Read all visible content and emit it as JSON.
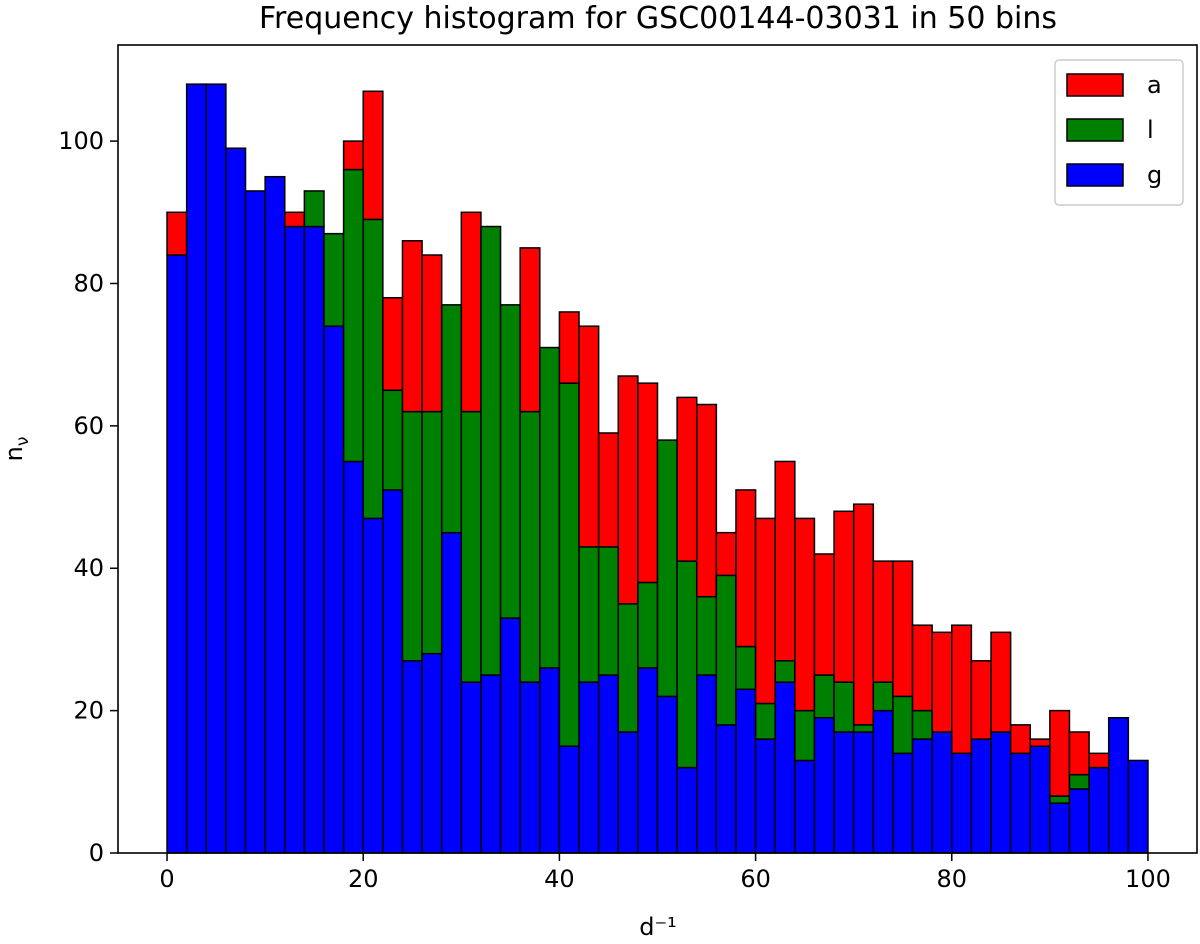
{
  "chart_data": {
    "type": "histogram",
    "stacked": true,
    "title": "Frequency histogram for GSC00144-03031 in 50 bins",
    "xlabel": "d⁻¹",
    "ylabel": {
      "text": "n",
      "subscript": "ν"
    },
    "bins": [
      0,
      2,
      4,
      6,
      8,
      10,
      12,
      14,
      16,
      18,
      20,
      22,
      24,
      26,
      28,
      30,
      32,
      34,
      36,
      38,
      40,
      42,
      44,
      46,
      48,
      50,
      52,
      54,
      56,
      58,
      60,
      62,
      64,
      66,
      68,
      70,
      72,
      74,
      76,
      78,
      80,
      82,
      84,
      86,
      88,
      90,
      92,
      94,
      96,
      98,
      100
    ],
    "series": [
      {
        "name": "a",
        "color": "#ff0000",
        "values": [
          6,
          0,
          0,
          0,
          0,
          0,
          2,
          0,
          0,
          4,
          18,
          13,
          24,
          22,
          0,
          28,
          0,
          0,
          23,
          0,
          10,
          31,
          16,
          32,
          28,
          0,
          23,
          27,
          6,
          22,
          26,
          28,
          27,
          17,
          24,
          31,
          17,
          19,
          12,
          14,
          18,
          11,
          14,
          4,
          1,
          12,
          6,
          2,
          0,
          0
        ]
      },
      {
        "name": "l",
        "color": "#008000",
        "values": [
          0,
          0,
          0,
          0,
          0,
          0,
          0,
          5,
          13,
          41,
          42,
          14,
          35,
          34,
          32,
          38,
          63,
          44,
          38,
          45,
          51,
          19,
          18,
          18,
          12,
          36,
          29,
          11,
          21,
          6,
          5,
          3,
          7,
          6,
          7,
          1,
          4,
          8,
          4,
          0,
          0,
          0,
          0,
          0,
          0,
          1,
          2,
          0,
          0,
          0
        ]
      },
      {
        "name": "g",
        "color": "#0000ff",
        "values": [
          84,
          108,
          108,
          99,
          93,
          95,
          88,
          88,
          74,
          55,
          47,
          51,
          27,
          28,
          45,
          24,
          25,
          33,
          24,
          26,
          15,
          24,
          25,
          17,
          26,
          22,
          12,
          25,
          18,
          23,
          16,
          24,
          13,
          19,
          17,
          17,
          20,
          14,
          16,
          17,
          14,
          16,
          17,
          14,
          15,
          7,
          9,
          12,
          19,
          13
        ]
      }
    ],
    "xlim": [
      -5,
      105
    ],
    "ylim": [
      0,
      113.5
    ],
    "xticks": [
      0,
      20,
      40,
      60,
      80,
      100
    ],
    "yticks": [
      0,
      20,
      40,
      60,
      80,
      100
    ],
    "legend": "upper right"
  }
}
